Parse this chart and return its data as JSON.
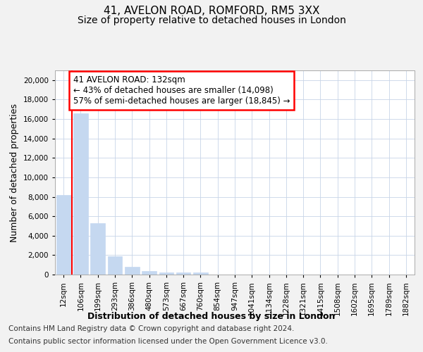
{
  "title_line1": "41, AVELON ROAD, ROMFORD, RM5 3XX",
  "title_line2": "Size of property relative to detached houses in London",
  "xlabel": "Distribution of detached houses by size in London",
  "ylabel": "Number of detached properties",
  "categories": [
    "12sqm",
    "106sqm",
    "199sqm",
    "293sqm",
    "386sqm",
    "480sqm",
    "573sqm",
    "667sqm",
    "760sqm",
    "854sqm",
    "947sqm",
    "1041sqm",
    "1134sqm",
    "1228sqm",
    "1321sqm",
    "1415sqm",
    "1508sqm",
    "1602sqm",
    "1695sqm",
    "1789sqm",
    "1882sqm"
  ],
  "values": [
    8200,
    16600,
    5300,
    1850,
    800,
    350,
    220,
    220,
    220,
    0,
    0,
    0,
    0,
    0,
    0,
    0,
    0,
    0,
    0,
    0,
    0
  ],
  "bar_color": "#c5d8f0",
  "bar_edge_color": "#c5d8f0",
  "annotation_line1": "41 AVELON ROAD: 132sqm",
  "annotation_line2": "← 43% of detached houses are smaller (14,098)",
  "annotation_line3": "57% of semi-detached houses are larger (18,845) →",
  "annotation_box_color": "white",
  "annotation_box_edge_color": "red",
  "vline_color": "red",
  "ylim": [
    0,
    21000
  ],
  "yticks": [
    0,
    2000,
    4000,
    6000,
    8000,
    10000,
    12000,
    14000,
    16000,
    18000,
    20000
  ],
  "footer_line1": "Contains HM Land Registry data © Crown copyright and database right 2024.",
  "footer_line2": "Contains public sector information licensed under the Open Government Licence v3.0.",
  "background_color": "#f2f2f2",
  "plot_background_color": "white",
  "grid_color": "#c8d4e8",
  "title_fontsize": 11,
  "subtitle_fontsize": 10,
  "tick_fontsize": 7.5,
  "label_fontsize": 9,
  "footer_fontsize": 7.5,
  "annot_fontsize": 8.5
}
